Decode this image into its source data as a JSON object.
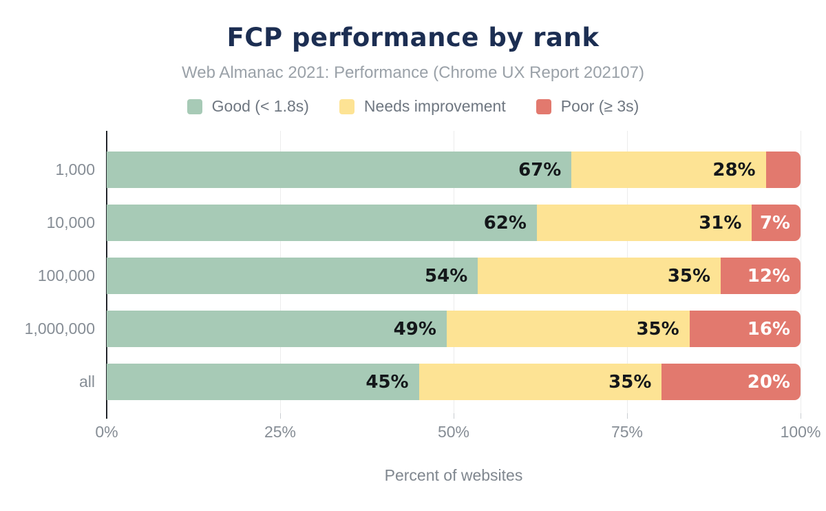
{
  "colors": {
    "background": "#ffffff",
    "title_text": "#1c2e52",
    "subtitle_text": "#9aa1a8",
    "axis_text": "#868d95",
    "axis_line": "#212429",
    "grid_line": "#ececec",
    "good": "#a7cab6",
    "needs_improvement": "#fde394",
    "poor": "#e2796e"
  },
  "chart_data": {
    "type": "bar",
    "orientation": "horizontal",
    "stacked": true,
    "title": "FCP performance by rank",
    "subtitle": "Web Almanac 2021: Performance (Chrome UX Report 202107)",
    "xlabel": "Percent of websites",
    "ylabel": "",
    "xlim": [
      0,
      100
    ],
    "x_ticks": [
      0,
      25,
      50,
      75,
      100
    ],
    "x_tick_labels": [
      "0%",
      "25%",
      "50%",
      "75%",
      "100%"
    ],
    "categories": [
      "1,000",
      "10,000",
      "100,000",
      "1,000,000",
      "all"
    ],
    "legend_position": "top",
    "grid": "vertical",
    "series": [
      {
        "name": "Good (< 1.8s)",
        "key": "good",
        "color": "#a7cab6",
        "label_color": "#14171a",
        "values": [
          67,
          62,
          54,
          49,
          45
        ],
        "labels": [
          "67%",
          "62%",
          "54%",
          "49%",
          "45%"
        ],
        "render_widths": [
          67,
          62,
          53.5,
          49,
          45
        ]
      },
      {
        "name": "Needs improvement",
        "key": "needs-improvement",
        "color": "#fde394",
        "label_color": "#14171a",
        "values": [
          28,
          31,
          35,
          35,
          35
        ],
        "labels": [
          "28%",
          "31%",
          "35%",
          "35%",
          "35%"
        ],
        "render_widths": [
          28,
          31,
          35,
          35,
          35
        ]
      },
      {
        "name": "Poor (≥ 3s)",
        "key": "poor",
        "color": "#e2796e",
        "label_color": "#ffffff",
        "values": [
          5,
          7,
          12,
          16,
          20
        ],
        "labels": [
          "",
          "7%",
          "12%",
          "16%",
          "20%"
        ],
        "render_widths": [
          5,
          7,
          11.5,
          16,
          20
        ]
      }
    ]
  }
}
